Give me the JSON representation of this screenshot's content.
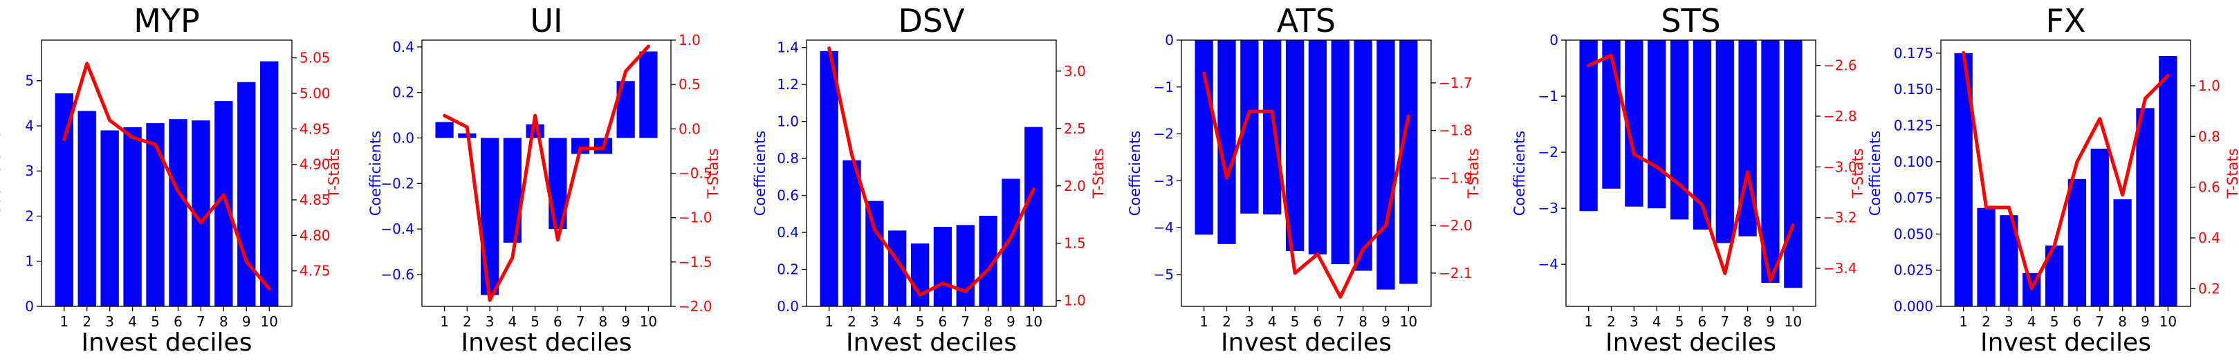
{
  "colors": {
    "bar": "#0000ff",
    "line": "#ff0000",
    "axis": "#000000"
  },
  "chart_data": [
    {
      "type": "bar",
      "title": "MYP",
      "xlabel": "Invest deciles",
      "ylabel": "Coefficients",
      "ylabel2": "T-Stats",
      "categories": [
        "1",
        "2",
        "3",
        "4",
        "5",
        "6",
        "7",
        "8",
        "9",
        "10"
      ],
      "series": [
        {
          "values": [
            4.72,
            4.33,
            3.9,
            3.97,
            4.06,
            4.15,
            4.12,
            4.55,
            4.97,
            5.43
          ]
        },
        {
          "axis": "right",
          "values": [
            4.935,
            5.042,
            4.962,
            4.938,
            4.928,
            4.862,
            4.818,
            4.857,
            4.763,
            4.725
          ]
        }
      ],
      "ylim": [
        0,
        5.9
      ],
      "ylim2": [
        4.7,
        5.075
      ],
      "yticks": [
        0,
        1,
        2,
        3,
        4,
        5
      ],
      "yticklabels": [
        "0",
        "1",
        "2",
        "3",
        "4",
        "5"
      ],
      "yticks2": [
        4.75,
        4.8,
        4.85,
        4.9,
        4.95,
        5.0,
        5.05
      ],
      "yticklabels2": [
        "4.75",
        "4.80",
        "4.85",
        "4.90",
        "4.95",
        "5.00",
        "5.05"
      ]
    },
    {
      "type": "bar",
      "title": "UI",
      "xlabel": "Invest deciles",
      "ylabel": "Coefficients",
      "ylabel2": "T-Stats",
      "categories": [
        "1",
        "2",
        "3",
        "4",
        "5",
        "6",
        "7",
        "8",
        "9",
        "10"
      ],
      "series": [
        {
          "values": [
            0.07,
            0.02,
            -0.69,
            -0.46,
            0.06,
            -0.4,
            -0.07,
            -0.07,
            0.25,
            0.38
          ]
        },
        {
          "axis": "right",
          "values": [
            0.15,
            0.02,
            -1.93,
            -1.45,
            0.15,
            -1.25,
            -0.22,
            -0.22,
            0.65,
            0.93
          ]
        }
      ],
      "ylim": [
        -0.74,
        0.43
      ],
      "ylim2": [
        -2.0,
        1.0
      ],
      "yticks": [
        -0.6,
        -0.4,
        -0.2,
        0.0,
        0.2,
        0.4
      ],
      "yticklabels": [
        "−0.6",
        "−0.4",
        "−0.2",
        "0.0",
        "0.2",
        "0.4"
      ],
      "yticks2": [
        -2.0,
        -1.5,
        -1.0,
        -0.5,
        0.0,
        0.5,
        1.0
      ],
      "yticklabels2": [
        "−2.0",
        "−1.5",
        "−1.0",
        "−0.5",
        "0.0",
        "0.5",
        "1.0"
      ]
    },
    {
      "type": "bar",
      "title": "DSV",
      "xlabel": "Invest deciles",
      "ylabel": "Coefficients",
      "ylabel2": "T-Stats",
      "categories": [
        "1",
        "2",
        "3",
        "4",
        "5",
        "6",
        "7",
        "8",
        "9",
        "10"
      ],
      "series": [
        {
          "values": [
            1.38,
            0.79,
            0.57,
            0.41,
            0.34,
            0.43,
            0.44,
            0.49,
            0.69,
            0.97
          ]
        },
        {
          "axis": "right",
          "values": [
            3.2,
            2.27,
            1.62,
            1.35,
            1.05,
            1.15,
            1.08,
            1.27,
            1.55,
            1.97
          ]
        }
      ],
      "ylim": [
        0,
        1.44
      ],
      "ylim2": [
        0.95,
        3.27
      ],
      "yticks": [
        0.0,
        0.2,
        0.4,
        0.6,
        0.8,
        1.0,
        1.2,
        1.4
      ],
      "yticklabels": [
        "0.0",
        "0.2",
        "0.4",
        "0.6",
        "0.8",
        "1.0",
        "1.2",
        "1.4"
      ],
      "yticks2": [
        1.0,
        1.5,
        2.0,
        2.5,
        3.0
      ],
      "yticklabels2": [
        "1.0",
        "1.5",
        "2.0",
        "2.5",
        "3.0"
      ]
    },
    {
      "type": "bar",
      "title": "ATS",
      "xlabel": "Invest deciles",
      "ylabel": "Coefficients",
      "ylabel2": "T-Stats",
      "categories": [
        "1",
        "2",
        "3",
        "4",
        "5",
        "6",
        "7",
        "8",
        "9",
        "10"
      ],
      "series": [
        {
          "values": [
            -4.15,
            -4.35,
            -3.7,
            -3.72,
            -4.5,
            -4.57,
            -4.78,
            -4.92,
            -5.32,
            -5.2
          ]
        },
        {
          "axis": "right",
          "values": [
            -1.68,
            -1.9,
            -1.76,
            -1.76,
            -2.1,
            -2.06,
            -2.15,
            -2.05,
            -2.0,
            -1.77
          ]
        }
      ],
      "ylim": [
        -5.68,
        0
      ],
      "ylim2": [
        -2.17,
        -1.61
      ],
      "yticks": [
        -5,
        -4,
        -3,
        -2,
        -1,
        0
      ],
      "yticklabels": [
        "−5",
        "−4",
        "−3",
        "−2",
        "−1",
        "0"
      ],
      "yticks2": [
        -2.1,
        -2.0,
        -1.9,
        -1.8,
        -1.7
      ],
      "yticklabels2": [
        "−2.1",
        "−2.0",
        "−1.9",
        "−1.8",
        "−1.7"
      ]
    },
    {
      "type": "bar",
      "title": "STS",
      "xlabel": "Invest deciles",
      "ylabel": "Coefficients",
      "ylabel2": "T-Stats",
      "categories": [
        "1",
        "2",
        "3",
        "4",
        "5",
        "6",
        "7",
        "8",
        "9",
        "10"
      ],
      "series": [
        {
          "values": [
            -3.05,
            -2.65,
            -2.97,
            -3.0,
            -3.2,
            -3.38,
            -3.62,
            -3.5,
            -4.33,
            -4.42
          ]
        },
        {
          "axis": "right",
          "values": [
            -2.6,
            -2.56,
            -2.95,
            -3.0,
            -3.07,
            -3.15,
            -3.42,
            -3.02,
            -3.45,
            -3.23
          ]
        }
      ],
      "ylim": [
        -4.75,
        0
      ],
      "ylim2": [
        -3.55,
        -2.5
      ],
      "yticks": [
        -4,
        -3,
        -2,
        -1,
        0
      ],
      "yticklabels": [
        "−4",
        "−3",
        "−2",
        "−1",
        "0"
      ],
      "yticks2": [
        -3.4,
        -3.2,
        -3.0,
        -2.8,
        -2.6
      ],
      "yticklabels2": [
        "−3.4",
        "−3.2",
        "−3.0",
        "−2.8",
        "−2.6"
      ]
    },
    {
      "type": "bar",
      "title": "FX",
      "xlabel": "Invest deciles",
      "ylabel": "Coefficients",
      "ylabel2": "T-Stats",
      "categories": [
        "1",
        "2",
        "3",
        "4",
        "5",
        "6",
        "7",
        "8",
        "9",
        "10"
      ],
      "series": [
        {
          "values": [
            0.175,
            0.068,
            0.063,
            0.023,
            0.042,
            0.088,
            0.109,
            0.074,
            0.137,
            0.173
          ]
        },
        {
          "axis": "right",
          "values": [
            1.13,
            0.52,
            0.52,
            0.2,
            0.37,
            0.7,
            0.87,
            0.57,
            0.95,
            1.04
          ]
        }
      ],
      "ylim": [
        0,
        0.184
      ],
      "ylim2": [
        0.13,
        1.18
      ],
      "yticks": [
        0.0,
        0.025,
        0.05,
        0.075,
        0.1,
        0.125,
        0.15,
        0.175
      ],
      "yticklabels": [
        "0.000",
        "0.025",
        "0.050",
        "0.075",
        "0.100",
        "0.125",
        "0.150",
        "0.175"
      ],
      "yticks2": [
        0.2,
        0.4,
        0.6,
        0.8,
        1.0
      ],
      "yticklabels2": [
        "0.2",
        "0.4",
        "0.6",
        "0.8",
        "1.0"
      ]
    }
  ]
}
